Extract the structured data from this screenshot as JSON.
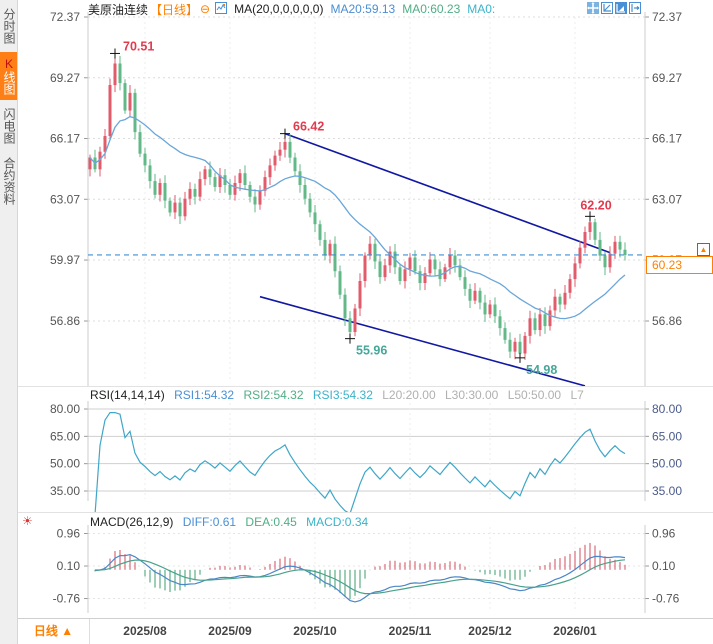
{
  "sidebar": {
    "tabs": [
      {
        "name": "time-chart",
        "label": "分时图",
        "active": false
      },
      {
        "name": "kline-chart",
        "label": "K线图",
        "active": true
      },
      {
        "name": "flash-chart",
        "label": "闪电图",
        "active": false
      },
      {
        "name": "contract-info",
        "label": "合约资料",
        "active": false
      }
    ]
  },
  "header": {
    "title": "美原油连续",
    "period_tag": "【日线】",
    "collapse_glyph": "⊖",
    "ma_formula": "MA(20,0,0,0,0,0)",
    "ma20": "MA20:59.13",
    "ma0_green": "MA0:60.23",
    "ma0_cyan": "MA0:"
  },
  "rsi_header": {
    "formula": "RSI(14,14,14)",
    "rsi1": "RSI1:54.32",
    "rsi2": "RSI2:54.32",
    "rsi3": "RSI3:54.32",
    "l20": "L20:20.00",
    "l30": "L30:30.00",
    "l50": "L50:50.00",
    "l7": "L7"
  },
  "macd_header": {
    "formula": "MACD(26,12,9)",
    "diff": "DIFF:0.61",
    "dea": "DEA:0.45",
    "macd": "MACD:0.34"
  },
  "price_tag": {
    "value": "60.23"
  },
  "bottom": {
    "period_label": "日线",
    "period_arrow": "▲"
  },
  "colors": {
    "up": "#e15b6b",
    "down": "#63b888",
    "ma_line": "#6aa6d8",
    "trend_line": "#1118a2",
    "dashed_price_line": "#3f8fd2",
    "rsi_line": "#3fa6c8",
    "diff_line": "#4a86c8",
    "dea_line": "#49a18b",
    "hist_up": "#d96b77",
    "hist_down": "#5fae87",
    "annotation_high": "#e23b4e",
    "annotation_low": "#45a898",
    "accent_orange": "#ff8000",
    "axis_text": "#555"
  },
  "chart_data": {
    "type": "candlestick",
    "symbol": "美原油连续",
    "period": "日线",
    "first_open": 64.6,
    "closes": [
      65.2,
      64.6,
      65.5,
      66.3,
      68.9,
      70.0,
      69.0,
      67.6,
      68.5,
      66.5,
      65.4,
      64.8,
      64.0,
      63.3,
      63.9,
      63.0,
      62.4,
      62.9,
      62.2,
      63.1,
      63.6,
      63.2,
      64.1,
      64.6,
      64.2,
      63.7,
      64.3,
      63.8,
      63.3,
      63.9,
      64.4,
      63.8,
      63.2,
      62.8,
      63.5,
      64.2,
      64.8,
      65.3,
      65.6,
      66.0,
      65.2,
      64.5,
      63.8,
      63.1,
      62.4,
      61.8,
      61.0,
      60.2,
      60.8,
      59.4,
      58.2,
      57.0,
      56.3,
      57.5,
      58.9,
      60.2,
      60.8,
      59.9,
      59.1,
      59.7,
      60.4,
      59.6,
      58.9,
      59.5,
      60.1,
      59.4,
      58.8,
      59.3,
      60.0,
      59.5,
      59.0,
      59.6,
      60.2,
      59.7,
      59.1,
      58.5,
      57.9,
      58.4,
      57.8,
      57.2,
      57.7,
      57.1,
      56.5,
      55.9,
      55.3,
      55.8,
      55.2,
      56.1,
      57.0,
      56.4,
      57.2,
      56.6,
      57.4,
      58.1,
      57.7,
      58.3,
      59.0,
      59.8,
      60.6,
      61.4,
      61.9,
      61.0,
      60.2,
      59.6,
      60.3,
      60.9,
      60.5,
      60.23
    ],
    "key_points": [
      {
        "index": 5,
        "type": "high",
        "price": 70.51,
        "label": "70.51"
      },
      {
        "index": 39,
        "type": "high",
        "price": 66.42,
        "label": "66.42"
      },
      {
        "index": 100,
        "type": "high",
        "price": 62.2,
        "label": "62.20"
      },
      {
        "index": 52,
        "type": "low",
        "price": 55.96,
        "label": "55.96"
      },
      {
        "index": 86,
        "type": "low",
        "price": 54.98,
        "label": "54.98"
      }
    ],
    "trend_lines": [
      {
        "from": [
          39,
          66.42
        ],
        "to": [
          104,
          60.35
        ]
      },
      {
        "from": [
          34,
          58.1
        ],
        "to": [
          99,
          53.55
        ]
      }
    ],
    "current_price": 60.23,
    "ma_period": 20,
    "y_axis": {
      "max": 72.37,
      "labels": [
        "72.37",
        "69.27",
        "66.17",
        "63.07",
        "59.97",
        "56.86"
      ],
      "values": [
        72.37,
        69.27,
        66.17,
        63.07,
        59.97,
        56.86
      ]
    },
    "x_axis": {
      "months": [
        {
          "index": 11,
          "label": "2025/08"
        },
        {
          "index": 28,
          "label": "2025/09"
        },
        {
          "index": 45,
          "label": "2025/10"
        },
        {
          "index": 64,
          "label": "2025/11"
        },
        {
          "index": 80,
          "label": "2025/12"
        },
        {
          "index": 97,
          "label": "2026/01"
        }
      ]
    },
    "rsi": {
      "period": 14,
      "grid_values": [
        80,
        65,
        50,
        35
      ],
      "grid_labels": [
        "80.00",
        "65.00",
        "50.00",
        "35.00"
      ]
    },
    "macd": {
      "params": [
        26,
        12,
        9
      ],
      "grid_values": [
        0.96,
        0.1,
        -0.76
      ],
      "grid_labels": [
        "0.96",
        "0.10",
        "-0.76"
      ]
    }
  }
}
